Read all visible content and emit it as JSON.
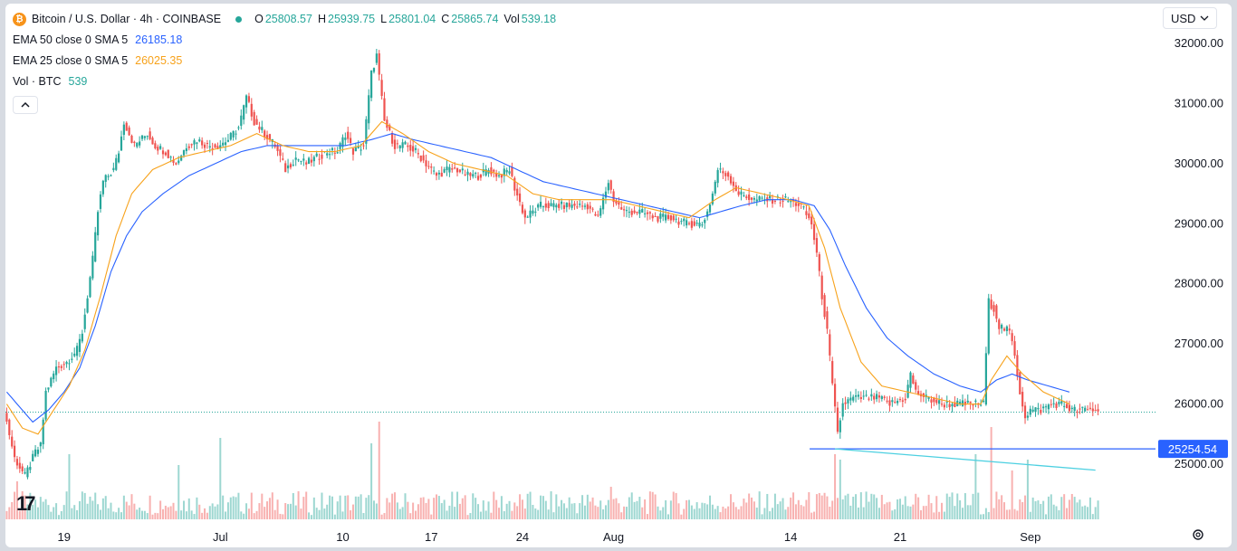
{
  "header": {
    "coin_icon": "bitcoin-icon",
    "symbol": "Bitcoin / U.S. Dollar · 4h · COINBASE",
    "status_color": "#26a69a",
    "ohlc": [
      {
        "k": "O",
        "v": "25808.57"
      },
      {
        "k": "H",
        "v": "25939.75"
      },
      {
        "k": "L",
        "v": "25801.04"
      },
      {
        "k": "C",
        "v": "25865.74"
      },
      {
        "k": "Vol",
        "v": "539.18"
      }
    ]
  },
  "indicators": [
    {
      "name": "EMA 50 close 0 SMA 5",
      "value": "26185.18",
      "color": "#2962ff"
    },
    {
      "name": "EMA 25 close 0 SMA 5",
      "value": "26025.35",
      "color": "#f7a21b"
    },
    {
      "name": "Vol · BTC",
      "value": "539",
      "color": "#26a69a"
    }
  ],
  "currency": "USD",
  "logo_text": "17",
  "collapse_icon": "chevron-up-icon",
  "settings_icon": "gear-icon",
  "price_label": "25254.54",
  "colors": {
    "up": "#26a69a",
    "down": "#ef5350",
    "ema50": "#2962ff",
    "ema25": "#f7a21b",
    "support": "#2962ff",
    "trend": "#4dd0e1",
    "price_line": "#26a69a"
  },
  "chart_data": {
    "type": "candlestick",
    "title": "Bitcoin / U.S. Dollar · 4h · COINBASE",
    "xlabel": "",
    "ylabel": "",
    "ylim": [
      24100,
      32300
    ],
    "y_ticks": [
      25000,
      26000,
      27000,
      28000,
      29000,
      30000,
      31000,
      32000
    ],
    "y_tick_labels": [
      "25000.00",
      "26000.00",
      "27000.00",
      "28000.00",
      "29000.00",
      "30000.00",
      "31000.00",
      "32000.00"
    ],
    "x_tick_labels": [
      "19",
      "Jul",
      "10",
      "17",
      "24",
      "Aug",
      "14",
      "21",
      "Sep"
    ],
    "x_tick_index": [
      22,
      82,
      129,
      163,
      198,
      233,
      301,
      343,
      393
    ],
    "close_path": [
      [
        0,
        25900
      ],
      [
        4,
        25100
      ],
      [
        8,
        24800
      ],
      [
        12,
        25200
      ],
      [
        14,
        25300
      ],
      [
        16,
        26200
      ],
      [
        20,
        26600
      ],
      [
        24,
        26700
      ],
      [
        28,
        26900
      ],
      [
        30,
        27200
      ],
      [
        32,
        27800
      ],
      [
        34,
        28400
      ],
      [
        36,
        29200
      ],
      [
        38,
        29700
      ],
      [
        40,
        29800
      ],
      [
        42,
        29900
      ],
      [
        44,
        30200
      ],
      [
        46,
        30700
      ],
      [
        48,
        30500
      ],
      [
        50,
        30300
      ],
      [
        55,
        30500
      ],
      [
        58,
        30300
      ],
      [
        62,
        30200
      ],
      [
        66,
        30000
      ],
      [
        70,
        30300
      ],
      [
        74,
        30400
      ],
      [
        78,
        30300
      ],
      [
        82,
        30300
      ],
      [
        86,
        30400
      ],
      [
        90,
        30600
      ],
      [
        93,
        31100
      ],
      [
        96,
        30700
      ],
      [
        100,
        30500
      ],
      [
        104,
        30300
      ],
      [
        108,
        29900
      ],
      [
        112,
        30100
      ],
      [
        116,
        30000
      ],
      [
        120,
        30100
      ],
      [
        124,
        30200
      ],
      [
        128,
        30200
      ],
      [
        131,
        30500
      ],
      [
        134,
        30200
      ],
      [
        138,
        30300
      ],
      [
        141,
        31500
      ],
      [
        143,
        31800
      ],
      [
        146,
        30700
      ],
      [
        150,
        30300
      ],
      [
        154,
        30300
      ],
      [
        158,
        30200
      ],
      [
        162,
        30000
      ],
      [
        166,
        29800
      ],
      [
        170,
        29900
      ],
      [
        174,
        29900
      ],
      [
        178,
        29800
      ],
      [
        182,
        29800
      ],
      [
        186,
        29900
      ],
      [
        190,
        29800
      ],
      [
        194,
        29900
      ],
      [
        196,
        29600
      ],
      [
        200,
        29100
      ],
      [
        206,
        29300
      ],
      [
        212,
        29300
      ],
      [
        218,
        29300
      ],
      [
        224,
        29300
      ],
      [
        228,
        29100
      ],
      [
        232,
        29700
      ],
      [
        234,
        29400
      ],
      [
        238,
        29200
      ],
      [
        244,
        29200
      ],
      [
        250,
        29100
      ],
      [
        256,
        29100
      ],
      [
        262,
        29000
      ],
      [
        268,
        29000
      ],
      [
        270,
        29200
      ],
      [
        272,
        29500
      ],
      [
        274,
        29900
      ],
      [
        278,
        29800
      ],
      [
        282,
        29500
      ],
      [
        288,
        29400
      ],
      [
        294,
        29400
      ],
      [
        300,
        29400
      ],
      [
        306,
        29300
      ],
      [
        310,
        29000
      ],
      [
        312,
        28500
      ],
      [
        314,
        27800
      ],
      [
        316,
        27200
      ],
      [
        318,
        26300
      ],
      [
        320,
        25500
      ],
      [
        322,
        26000
      ],
      [
        326,
        26100
      ],
      [
        330,
        26100
      ],
      [
        336,
        26100
      ],
      [
        340,
        26000
      ],
      [
        346,
        26100
      ],
      [
        348,
        26500
      ],
      [
        350,
        26200
      ],
      [
        354,
        26100
      ],
      [
        360,
        26000
      ],
      [
        366,
        26000
      ],
      [
        370,
        26000
      ],
      [
        374,
        26000
      ],
      [
        376,
        26000
      ],
      [
        378,
        27700
      ],
      [
        380,
        27600
      ],
      [
        382,
        27300
      ],
      [
        386,
        27200
      ],
      [
        388,
        26800
      ],
      [
        390,
        26200
      ],
      [
        392,
        25800
      ],
      [
        394,
        25900
      ],
      [
        398,
        25900
      ],
      [
        402,
        26000
      ],
      [
        406,
        26000
      ],
      [
        410,
        25900
      ]
    ],
    "ema50_path": [
      [
        0,
        26200
      ],
      [
        6,
        25900
      ],
      [
        10,
        25700
      ],
      [
        16,
        25900
      ],
      [
        22,
        26200
      ],
      [
        28,
        26600
      ],
      [
        34,
        27300
      ],
      [
        40,
        28200
      ],
      [
        46,
        28800
      ],
      [
        52,
        29200
      ],
      [
        60,
        29500
      ],
      [
        70,
        29800
      ],
      [
        80,
        30000
      ],
      [
        90,
        30200
      ],
      [
        100,
        30300
      ],
      [
        110,
        30300
      ],
      [
        120,
        30300
      ],
      [
        130,
        30300
      ],
      [
        140,
        30400
      ],
      [
        148,
        30500
      ],
      [
        156,
        30400
      ],
      [
        166,
        30300
      ],
      [
        176,
        30200
      ],
      [
        186,
        30100
      ],
      [
        196,
        29900
      ],
      [
        206,
        29700
      ],
      [
        216,
        29600
      ],
      [
        226,
        29500
      ],
      [
        236,
        29400
      ],
      [
        246,
        29300
      ],
      [
        256,
        29200
      ],
      [
        266,
        29100
      ],
      [
        274,
        29200
      ],
      [
        282,
        29300
      ],
      [
        292,
        29400
      ],
      [
        302,
        29400
      ],
      [
        310,
        29300
      ],
      [
        316,
        28900
      ],
      [
        322,
        28300
      ],
      [
        330,
        27600
      ],
      [
        338,
        27100
      ],
      [
        346,
        26800
      ],
      [
        356,
        26500
      ],
      [
        366,
        26300
      ],
      [
        374,
        26200
      ],
      [
        380,
        26400
      ],
      [
        386,
        26500
      ],
      [
        392,
        26400
      ],
      [
        400,
        26300
      ],
      [
        408,
        26200
      ]
    ],
    "ema25_path": [
      [
        0,
        26000
      ],
      [
        6,
        25600
      ],
      [
        12,
        25500
      ],
      [
        18,
        25900
      ],
      [
        24,
        26300
      ],
      [
        30,
        26900
      ],
      [
        36,
        27800
      ],
      [
        42,
        28800
      ],
      [
        48,
        29500
      ],
      [
        56,
        29900
      ],
      [
        66,
        30100
      ],
      [
        76,
        30200
      ],
      [
        86,
        30300
      ],
      [
        96,
        30500
      ],
      [
        106,
        30300
      ],
      [
        116,
        30200
      ],
      [
        126,
        30200
      ],
      [
        136,
        30300
      ],
      [
        144,
        30700
      ],
      [
        152,
        30500
      ],
      [
        162,
        30200
      ],
      [
        172,
        30000
      ],
      [
        182,
        29900
      ],
      [
        192,
        29800
      ],
      [
        202,
        29500
      ],
      [
        212,
        29400
      ],
      [
        222,
        29400
      ],
      [
        232,
        29400
      ],
      [
        242,
        29300
      ],
      [
        252,
        29200
      ],
      [
        262,
        29100
      ],
      [
        272,
        29400
      ],
      [
        280,
        29600
      ],
      [
        290,
        29500
      ],
      [
        300,
        29400
      ],
      [
        308,
        29300
      ],
      [
        314,
        28600
      ],
      [
        320,
        27600
      ],
      [
        328,
        26700
      ],
      [
        336,
        26300
      ],
      [
        346,
        26200
      ],
      [
        356,
        26100
      ],
      [
        366,
        26000
      ],
      [
        374,
        26000
      ],
      [
        378,
        26400
      ],
      [
        384,
        26800
      ],
      [
        390,
        26500
      ],
      [
        398,
        26200
      ],
      [
        408,
        26000
      ]
    ],
    "support_level": 25254.54,
    "trendline": [
      [
        318,
        25254.54
      ],
      [
        418,
        24900
      ]
    ],
    "last_price": 25865.74,
    "volume_spikes": [
      [
        4,
        0.35
      ],
      [
        24,
        0.6
      ],
      [
        66,
        0.5
      ],
      [
        82,
        0.75
      ],
      [
        140,
        0.7
      ],
      [
        143,
        0.9
      ],
      [
        232,
        0.3
      ],
      [
        318,
        0.6
      ],
      [
        320,
        0.55
      ],
      [
        372,
        0.6
      ],
      [
        378,
        0.85
      ],
      [
        386,
        0.45
      ],
      [
        392,
        0.55
      ]
    ]
  }
}
